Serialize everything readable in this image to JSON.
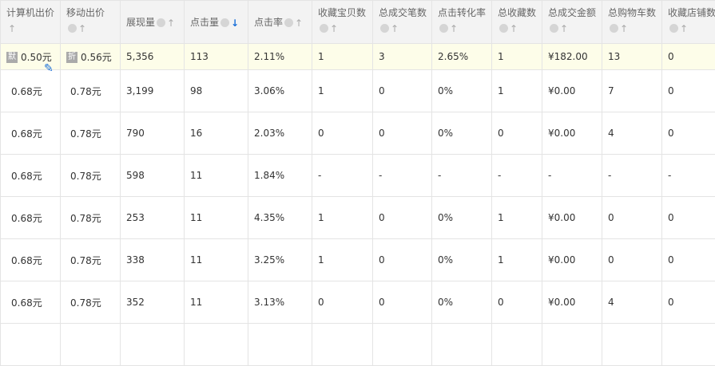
{
  "headers": [
    {
      "label": "计算机出价",
      "help": false
    },
    {
      "label": "移动出价",
      "help": true
    },
    {
      "label": "展现量",
      "help": true
    },
    {
      "label": "点击量",
      "help": true,
      "sort": "desc"
    },
    {
      "label": "点击率",
      "help": true
    },
    {
      "label": "收藏宝贝数",
      "help": true
    },
    {
      "label": "总成交笔数",
      "help": true
    },
    {
      "label": "点击转化率",
      "help": true
    },
    {
      "label": "总收藏数",
      "help": true
    },
    {
      "label": "总成交金额",
      "help": true
    },
    {
      "label": "总购物车数",
      "help": true
    },
    {
      "label": "收藏店铺数",
      "help": true
    }
  ],
  "highlight_row": {
    "pc_badge": "默",
    "mobile_badge": "折",
    "cells": [
      "0.50元",
      "0.56元",
      "5,356",
      "113",
      "2.11%",
      "1",
      "3",
      "2.65%",
      "1",
      "¥182.00",
      "13",
      "0"
    ]
  },
  "rows": [
    [
      "0.68元",
      "0.78元",
      "3,199",
      "98",
      "3.06%",
      "1",
      "0",
      "0%",
      "1",
      "¥0.00",
      "7",
      "0"
    ],
    [
      "0.68元",
      "0.78元",
      "790",
      "16",
      "2.03%",
      "0",
      "0",
      "0%",
      "0",
      "¥0.00",
      "4",
      "0"
    ],
    [
      "0.68元",
      "0.78元",
      "598",
      "11",
      "1.84%",
      "-",
      "-",
      "-",
      "-",
      "-",
      "-",
      "-"
    ],
    [
      "0.68元",
      "0.78元",
      "253",
      "11",
      "4.35%",
      "1",
      "0",
      "0%",
      "1",
      "¥0.00",
      "0",
      "0"
    ],
    [
      "0.68元",
      "0.78元",
      "338",
      "11",
      "3.25%",
      "1",
      "0",
      "0%",
      "1",
      "¥0.00",
      "0",
      "0"
    ],
    [
      "0.68元",
      "0.78元",
      "352",
      "11",
      "3.13%",
      "0",
      "0",
      "0%",
      "0",
      "¥0.00",
      "4",
      "0"
    ]
  ],
  "colors": {
    "accent": "#1a6fd8",
    "highlight": "#fdfde9",
    "header_bg": "#f3f3f3"
  }
}
